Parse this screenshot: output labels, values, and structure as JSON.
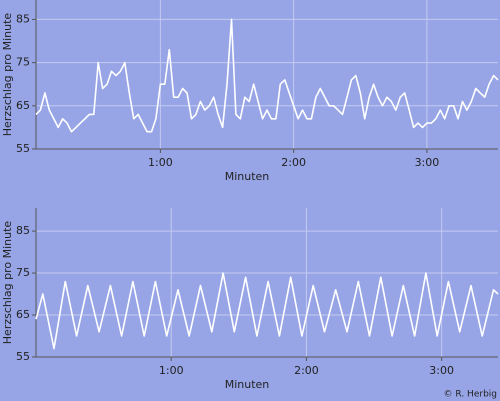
{
  "chart_data": [
    {
      "type": "line",
      "xlabel": "Minuten",
      "ylabel": "Herzschlag pro Minute",
      "xlim": [
        4,
        212
      ],
      "ylim": [
        55,
        89.5
      ],
      "xticks": [
        {
          "value": 60,
          "label": "1:00"
        },
        {
          "value": 120,
          "label": "2:00"
        },
        {
          "value": 180,
          "label": "3:00"
        }
      ],
      "yticks": [
        55,
        65,
        75,
        85
      ],
      "grid": true,
      "series": [
        {
          "color": "#ffffff",
          "x": [
            4,
            6,
            8,
            10,
            12,
            14,
            16,
            18,
            20,
            22,
            24,
            26,
            28,
            30,
            32,
            34,
            36,
            38,
            40,
            42,
            44,
            46,
            48,
            50,
            52,
            54,
            56,
            58,
            60,
            62,
            64,
            66,
            68,
            70,
            72,
            74,
            76,
            78,
            80,
            82,
            84,
            86,
            88,
            90,
            92,
            94,
            96,
            98,
            100,
            102,
            104,
            106,
            108,
            110,
            112,
            114,
            116,
            118,
            120,
            122,
            124,
            126,
            128,
            130,
            132,
            134,
            136,
            138,
            140,
            142,
            144,
            146,
            148,
            150,
            152,
            154,
            156,
            158,
            160,
            162,
            164,
            166,
            168,
            170,
            172,
            174,
            176,
            178,
            180,
            182,
            184,
            186,
            188,
            190,
            192,
            194,
            196,
            198,
            200,
            202,
            204,
            206,
            208,
            210,
            212
          ],
          "values": [
            63,
            64,
            68,
            64,
            62,
            60,
            62,
            61,
            59,
            60,
            61,
            62,
            63,
            63,
            75,
            69,
            70,
            73,
            72,
            73,
            75,
            68,
            62,
            63,
            61,
            59,
            59,
            62,
            70,
            70,
            78,
            67,
            67,
            69,
            68,
            62,
            63,
            66,
            64,
            65,
            67,
            63,
            60,
            70,
            85,
            63,
            62,
            67,
            66,
            70,
            66,
            62,
            64,
            62,
            62,
            70,
            71,
            68,
            65,
            62,
            64,
            62,
            62,
            67,
            69,
            67,
            65,
            65,
            64,
            63,
            67,
            71,
            72,
            68,
            62,
            67,
            70,
            67,
            65,
            67,
            66,
            64,
            67,
            68,
            64,
            60,
            61,
            60,
            61,
            61,
            62,
            64,
            62,
            65,
            65,
            62,
            66,
            64,
            66,
            69,
            68,
            67,
            70,
            72,
            71
          ]
        }
      ]
    },
    {
      "type": "line",
      "xlabel": "Minuten",
      "ylabel": "Herzschlag pro Minute",
      "xlim": [
        0,
        205
      ],
      "ylim": [
        55,
        90.5
      ],
      "xticks": [
        {
          "value": 60,
          "label": "1:00"
        },
        {
          "value": 120,
          "label": "2:00"
        },
        {
          "value": 180,
          "label": "3:00"
        }
      ],
      "yticks": [
        55,
        65,
        75,
        85
      ],
      "grid": true,
      "series": [
        {
          "color": "#ffffff",
          "x": [
            0,
            3,
            8,
            13,
            18,
            23,
            28,
            33,
            38,
            43,
            48,
            53,
            58,
            63,
            68,
            73,
            78,
            83,
            88,
            93,
            98,
            103,
            108,
            113,
            118,
            123,
            128,
            133,
            138,
            143,
            148,
            153,
            158,
            163,
            168,
            173,
            178,
            183,
            188,
            193,
            198,
            203,
            205
          ],
          "values": [
            64,
            70,
            57,
            73,
            60,
            72,
            61,
            72,
            60,
            73,
            60,
            73,
            60,
            71,
            60,
            72,
            61,
            75,
            61,
            74,
            60,
            73,
            60,
            74,
            60,
            72,
            61,
            71,
            61,
            73,
            60,
            74,
            60,
            72,
            60,
            75,
            60,
            73,
            61,
            72,
            60,
            71,
            70
          ]
        }
      ]
    }
  ],
  "credit": "© R. Herbig"
}
